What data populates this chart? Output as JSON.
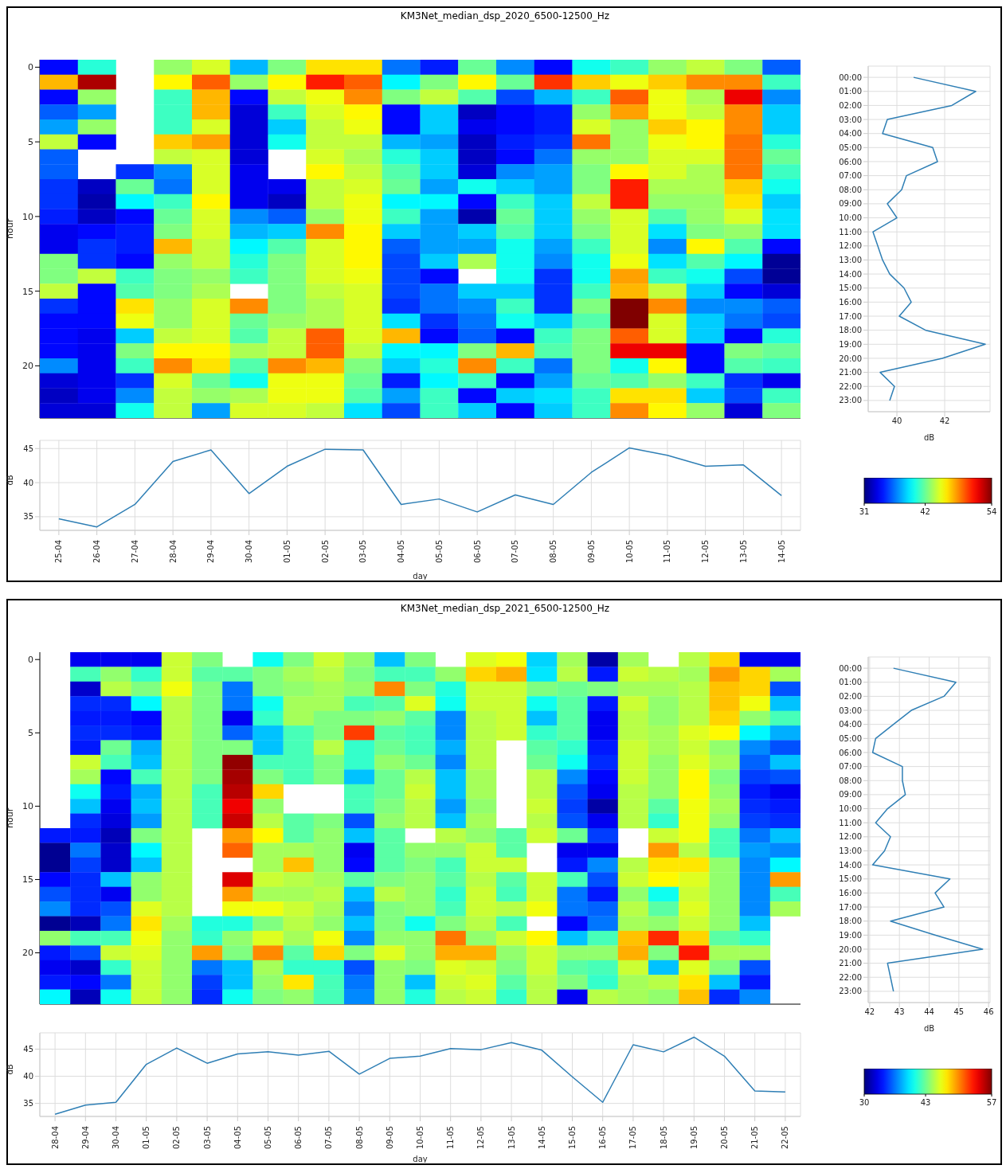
{
  "chart_data": [
    {
      "type": "heatmap",
      "title": "KM3Net_median_dsp_2020_6500-12500_Hz",
      "ylabel": "hour",
      "tick_labels": "y",
      "clim": [
        31,
        54
      ],
      "cticks": [
        31,
        42,
        54
      ],
      "categories": [
        null,
        null,
        null,
        null,
        null,
        null,
        null,
        null,
        null,
        null,
        null,
        null,
        null,
        null,
        null,
        null,
        null,
        null,
        null,
        null
      ],
      "y_categories": [
        "0",
        null,
        null,
        null,
        null,
        "5",
        null,
        null,
        null,
        null,
        "10",
        null,
        null,
        null,
        null,
        "15",
        null,
        null,
        null,
        null,
        "20",
        null,
        null,
        null
      ],
      "cells": [
        [
          34,
          40.5,
          null,
          43,
          44.5,
          38,
          42.5,
          46,
          46,
          36.5,
          34.5,
          42,
          37,
          34,
          40,
          41,
          43,
          44,
          42.5,
          36
        ],
        [
          47,
          53,
          null,
          45.5,
          49,
          43,
          45.5,
          50.5,
          49,
          39.5,
          42.5,
          45.5,
          42,
          50,
          46.5,
          45,
          46.5,
          48,
          48,
          41
        ],
        [
          34,
          43,
          null,
          41,
          47,
          34,
          44,
          45,
          48,
          42.5,
          44,
          41.5,
          35.5,
          38,
          41,
          49,
          45,
          43.5,
          51.5,
          37
        ],
        [
          36,
          37.5,
          null,
          41,
          47,
          33,
          41,
          44.5,
          45.5,
          34,
          38.5,
          32.5,
          34,
          34.5,
          43,
          47.5,
          45,
          44,
          48,
          38.5
        ],
        [
          37.5,
          43,
          null,
          41,
          44.5,
          33,
          38.5,
          44,
          45,
          34,
          38.5,
          33.5,
          34,
          34.5,
          44.5,
          43,
          46.5,
          45.5,
          48,
          38.5
        ],
        [
          44,
          34,
          null,
          46.5,
          47.5,
          33,
          40,
          44,
          44,
          38,
          37.5,
          32.5,
          34.5,
          35,
          48.5,
          43,
          45,
          45.5,
          48.5,
          40.5
        ],
        [
          36,
          null,
          null,
          44,
          44.5,
          33,
          null,
          44.5,
          43.5,
          40.5,
          38.5,
          32.5,
          34,
          36.5,
          43,
          43,
          44.5,
          44.5,
          48.5,
          42
        ],
        [
          36,
          null,
          35,
          37,
          44.5,
          33.5,
          null,
          45.5,
          44,
          41.5,
          38.5,
          33,
          37,
          37.5,
          42.5,
          45.5,
          44.5,
          43.5,
          48.5,
          41
        ],
        [
          35,
          32.5,
          42,
          36.5,
          44.5,
          33.5,
          33.5,
          44,
          44.5,
          42,
          37.5,
          40,
          38.5,
          37.5,
          42.5,
          50.5,
          43.5,
          43.5,
          46.5,
          40
        ],
        [
          35,
          32,
          39.5,
          41,
          45.5,
          33.5,
          32.5,
          44,
          45,
          39.5,
          39.5,
          34,
          41,
          38.5,
          44,
          50.5,
          43,
          43,
          46,
          38.5
        ],
        [
          34.5,
          32.5,
          34,
          42,
          44.5,
          37,
          36,
          43,
          45,
          41,
          37.5,
          32,
          42,
          38.5,
          43,
          44.5,
          41.5,
          43,
          44.5,
          39
        ],
        [
          33.5,
          34,
          34.5,
          42.5,
          44.5,
          38,
          38.5,
          48,
          45.5,
          38.5,
          37.5,
          38.5,
          41.5,
          38.5,
          42.5,
          44.5,
          39,
          42.5,
          43,
          39
        ],
        [
          33.5,
          35,
          34.5,
          47,
          44,
          39.5,
          41.5,
          44.5,
          45.5,
          36,
          37.5,
          37.5,
          40,
          37.5,
          41,
          44.5,
          37,
          45.5,
          41.5,
          34
        ],
        [
          42.5,
          35,
          34,
          43,
          44,
          40.5,
          42.5,
          44.5,
          45.5,
          35.5,
          38.5,
          43.5,
          40,
          37,
          40,
          45,
          39,
          41.5,
          39.5,
          31.5
        ],
        [
          42.5,
          44,
          41,
          42.5,
          43,
          41,
          42.5,
          44.5,
          45,
          35.5,
          34,
          null,
          40,
          35,
          40,
          47.5,
          41,
          40,
          35.5,
          31.5
        ],
        [
          44,
          34,
          41.5,
          42.5,
          43.5,
          null,
          42.5,
          44,
          44.5,
          35.5,
          36.5,
          38.5,
          38.5,
          35,
          41,
          47,
          44,
          38.5,
          34,
          33
        ],
        [
          35,
          34,
          46,
          43,
          44.5,
          48,
          42.5,
          43.5,
          44.5,
          35,
          36.5,
          37,
          41,
          35,
          42.5,
          54,
          48,
          37,
          37,
          36
        ],
        [
          34,
          34,
          45,
          43,
          44.5,
          42,
          43,
          43.5,
          44.5,
          39,
          35,
          36.5,
          40,
          38.5,
          41.5,
          54,
          44.5,
          38.5,
          36.5,
          35.5
        ],
        [
          34,
          33.5,
          38.5,
          44,
          44.5,
          41.5,
          44,
          49,
          44.5,
          47,
          34,
          36,
          34,
          41,
          42.5,
          49,
          44.5,
          38.5,
          34,
          40.5
        ],
        [
          34,
          33.5,
          42.5,
          45.5,
          45.5,
          43.5,
          44,
          49,
          44,
          39.5,
          39.5,
          42.5,
          47,
          41.5,
          42.5,
          51.5,
          51.5,
          34,
          42.5,
          42
        ],
        [
          37,
          33.5,
          41,
          48,
          46,
          41.5,
          48,
          47,
          42.5,
          38.5,
          40.5,
          48,
          41,
          36.5,
          42.5,
          40,
          45.5,
          34,
          41.5,
          41
        ],
        [
          33,
          33.5,
          35,
          44.5,
          42,
          40,
          45,
          45,
          42,
          34.5,
          39.5,
          41,
          34,
          37.5,
          42,
          41.5,
          43,
          41,
          35,
          33.5
        ],
        [
          32.5,
          33.5,
          37,
          44,
          43,
          43.5,
          45,
          45,
          41.5,
          37.5,
          41,
          34,
          38.5,
          39,
          41,
          46,
          46,
          38.5,
          35.5,
          41
        ],
        [
          33,
          33,
          40,
          44,
          37.5,
          44.5,
          44.5,
          44,
          39,
          35.5,
          41,
          38.5,
          34,
          38.5,
          41,
          48,
          45.5,
          43,
          33,
          42.5
        ]
      ]
    },
    {
      "type": "line",
      "orientation": "horizontal",
      "xlabel": "dB",
      "grid": true,
      "color": "#2f7fb5",
      "xlim": [
        38.8,
        43.9
      ],
      "xticks": [
        40,
        42
      ],
      "categories": [
        "00:00",
        "01:00",
        "02:00",
        "03:00",
        "04:00",
        "05:00",
        "06:00",
        "07:00",
        "08:00",
        "09:00",
        "10:00",
        "11:00",
        "12:00",
        "13:00",
        "14:00",
        "15:00",
        "16:00",
        "17:00",
        "18:00",
        "19:00",
        "20:00",
        "21:00",
        "22:00",
        "23:00"
      ],
      "values": [
        40.7,
        43.3,
        42.3,
        39.6,
        39.4,
        41.5,
        41.7,
        40.4,
        40.2,
        39.6,
        40.0,
        39.0,
        39.2,
        39.4,
        39.7,
        40.3,
        40.6,
        40.1,
        41.2,
        43.7,
        41.9,
        39.3,
        39.9,
        39.7
      ]
    },
    {
      "type": "line",
      "xlabel": "day",
      "ylabel": "dB",
      "grid": true,
      "color": "#2f7fb5",
      "ylim": [
        33,
        46.2
      ],
      "yticks": [
        35,
        40,
        45
      ],
      "categories": [
        "25-04",
        "26-04",
        "27-04",
        "28-04",
        "29-04",
        "30-04",
        "01-05",
        "02-05",
        "03-05",
        "04-05",
        "05-05",
        "06-05",
        "07-05",
        "08-05",
        "09-05",
        "10-05",
        "11-05",
        "12-05",
        "13-05",
        "14-05"
      ],
      "values": [
        34.7,
        33.5,
        36.8,
        43.1,
        44.8,
        38.4,
        42.4,
        44.9,
        44.8,
        36.8,
        37.6,
        35.7,
        38.2,
        36.8,
        41.5,
        45.1,
        44.0,
        42.4,
        42.6,
        38.1
      ]
    },
    {
      "type": "heatmap",
      "title": "KM3Net_median_dsp_2021_6500-12500_Hz",
      "ylabel": "hour",
      "tick_labels": "y",
      "clim": [
        30,
        57
      ],
      "cticks": [
        30,
        43,
        57
      ],
      "categories": [
        null,
        null,
        null,
        null,
        null,
        null,
        null,
        null,
        null,
        null,
        null,
        null,
        null,
        null,
        null,
        null,
        null,
        null,
        null,
        null,
        null,
        null,
        null,
        null,
        null
      ],
      "y_categories": [
        "0",
        null,
        null,
        null,
        null,
        "5",
        null,
        null,
        null,
        null,
        "10",
        null,
        null,
        null,
        null,
        "15",
        null,
        null,
        null,
        null,
        "20",
        null,
        null,
        null
      ],
      "cells": [
        [
          null,
          33,
          33,
          33,
          45.5,
          43.5,
          null,
          40.5,
          43.5,
          45.5,
          44,
          38.5,
          43.5,
          null,
          46,
          46.5,
          39,
          44.5,
          31,
          44.5,
          null,
          45,
          48,
          33,
          33
        ],
        [
          null,
          42,
          44,
          41.5,
          45.5,
          42.5,
          42.5,
          43.5,
          44.5,
          45,
          43.5,
          42,
          42,
          44,
          48,
          49,
          39.5,
          45,
          34,
          45.5,
          45,
          44.5,
          49.5,
          48,
          44.5
        ],
        [
          null,
          32,
          45,
          43.5,
          46.5,
          43.5,
          36.5,
          43.5,
          44,
          44.5,
          44,
          50,
          43.5,
          41,
          45.5,
          45.5,
          43.5,
          43,
          43.5,
          44.5,
          44.5,
          45,
          48.5,
          48,
          35.5
        ],
        [
          null,
          34.5,
          34.5,
          40,
          45,
          43.5,
          36.5,
          40.5,
          44.5,
          44.5,
          42,
          42.5,
          46,
          40.5,
          45.5,
          45.5,
          40.5,
          42.5,
          34,
          45.5,
          44,
          45,
          48.5,
          46.5,
          38.5
        ],
        [
          null,
          34,
          34,
          33.5,
          45,
          43.5,
          33,
          41.5,
          44.5,
          43.5,
          43.5,
          44,
          42.5,
          37,
          45,
          45.5,
          38.5,
          42.5,
          33,
          45,
          44,
          45,
          48,
          44,
          42
        ],
        [
          null,
          34.5,
          34.5,
          34,
          45,
          43.5,
          36,
          38.5,
          42,
          43.5,
          52,
          42.5,
          42,
          37,
          45,
          45.5,
          41.5,
          42.5,
          33,
          45,
          44.5,
          46,
          47,
          40,
          38
        ],
        [
          null,
          34,
          43,
          38,
          45,
          43.5,
          43.5,
          38.5,
          42,
          45,
          41.5,
          43,
          42,
          38,
          45,
          null,
          42.5,
          41.5,
          34,
          45.5,
          44.5,
          45.5,
          44,
          37,
          35.5
        ],
        [
          null,
          45.5,
          42,
          38.5,
          45,
          43.5,
          56.5,
          42,
          42,
          43.5,
          41.5,
          44,
          43,
          37,
          45,
          null,
          43,
          40.5,
          34.5,
          45.5,
          44,
          46,
          44.5,
          36,
          38.5
        ],
        [
          null,
          44.5,
          33.5,
          42,
          45,
          43.5,
          56,
          43.5,
          42,
          43.5,
          38.5,
          43,
          45,
          38.5,
          44.5,
          null,
          45,
          37,
          33.5,
          45.5,
          44,
          47,
          43.5,
          35,
          35.5
        ],
        [
          null,
          40.5,
          34,
          38,
          45,
          42,
          55.5,
          48,
          null,
          null,
          42,
          43,
          45.5,
          38.5,
          44.5,
          null,
          45,
          35.5,
          33,
          45,
          44,
          47,
          44,
          34,
          33
        ],
        [
          null,
          38.5,
          33,
          38.5,
          45,
          42,
          54,
          44,
          null,
          null,
          42,
          43.5,
          45,
          37.5,
          44,
          null,
          45.5,
          35,
          31,
          45,
          42.5,
          46.5,
          44.5,
          34.5,
          34
        ],
        [
          null,
          34.5,
          32.5,
          37.5,
          45,
          42,
          55,
          45,
          42.5,
          43.5,
          35.5,
          44,
          45,
          38.5,
          44.5,
          null,
          45,
          35.5,
          33,
          45,
          41.5,
          46.5,
          44,
          35,
          34.5
        ],
        [
          34,
          34,
          31.5,
          43.5,
          45,
          null,
          49.5,
          47,
          42.5,
          44,
          38.5,
          42.5,
          null,
          45,
          44,
          42.5,
          45.5,
          43,
          35,
          null,
          45.5,
          46.5,
          42,
          36.5,
          38.5
        ],
        [
          30.5,
          36.5,
          32,
          40,
          45,
          null,
          51,
          44.5,
          44.5,
          44,
          33,
          42.5,
          44,
          44,
          45.5,
          42.5,
          null,
          33,
          33,
          null,
          49.5,
          45,
          42,
          37.5,
          37
        ],
        [
          30.5,
          35,
          32,
          38.5,
          45,
          null,
          null,
          44.5,
          48.5,
          44,
          33.5,
          42.5,
          43.5,
          42,
          45.5,
          45.5,
          null,
          34,
          37,
          45,
          47.5,
          47.5,
          44,
          37,
          40
        ],
        [
          33.5,
          34.5,
          38.5,
          44,
          45,
          null,
          54.5,
          45.5,
          45,
          44.5,
          42.5,
          43.5,
          44,
          42.5,
          45,
          42.5,
          45.5,
          42,
          35.5,
          45.5,
          47,
          46,
          44,
          37,
          49.5
        ],
        [
          35.5,
          34.5,
          33,
          44,
          45,
          null,
          49.5,
          44.5,
          44.5,
          45,
          38.5,
          45,
          44,
          41.5,
          45.5,
          42,
          45.5,
          36.5,
          34,
          44,
          40.5,
          45.5,
          44,
          37,
          42
        ],
        [
          37,
          34.5,
          35.5,
          46,
          45,
          null,
          46.5,
          46.5,
          45.5,
          44.5,
          37,
          43.5,
          44,
          42,
          45.5,
          45,
          46.5,
          36.5,
          36,
          45,
          42.5,
          46,
          44,
          37,
          44.5
        ],
        [
          30.5,
          31.5,
          36.5,
          47.5,
          44.5,
          41,
          41,
          43.5,
          45,
          44,
          38.5,
          43.5,
          40.5,
          43.5,
          45,
          42,
          null,
          33.5,
          36.5,
          44.5,
          44,
          45.5,
          44,
          38.5,
          null
        ],
        [
          44,
          42,
          42,
          46.5,
          44,
          41.5,
          44,
          46,
          44.5,
          46.5,
          37,
          44,
          44,
          50.5,
          44,
          45.5,
          47,
          38.5,
          42,
          48.5,
          52.5,
          48,
          42.5,
          41.5,
          null
        ],
        [
          34,
          35.5,
          45.5,
          46,
          44,
          49.5,
          43.5,
          50,
          42.5,
          48,
          43.5,
          46,
          44,
          49,
          49,
          44,
          45.5,
          44,
          44,
          49,
          43.5,
          53,
          44.5,
          44.5,
          null
        ],
        [
          33,
          32,
          41.5,
          45.5,
          44,
          36.5,
          38.5,
          44.5,
          41.5,
          41.5,
          35.5,
          44,
          43.5,
          46,
          45.5,
          43.5,
          45.5,
          42.5,
          42,
          45.5,
          38.5,
          46,
          43.5,
          35.5,
          null
        ],
        [
          34,
          33.5,
          36.5,
          45.5,
          44,
          35,
          38.5,
          44,
          47.5,
          42,
          36.5,
          44,
          38.5,
          45.5,
          46,
          42.5,
          45,
          43.5,
          41.5,
          44.5,
          45,
          47.5,
          38.5,
          34,
          null
        ],
        [
          40,
          31.5,
          40.5,
          45.5,
          44,
          34.5,
          40.5,
          43.5,
          44,
          42,
          37,
          44,
          41,
          45,
          45.5,
          41.5,
          45,
          33,
          45,
          44.5,
          44,
          48.5,
          34.5,
          37,
          null
        ]
      ]
    },
    {
      "type": "line",
      "orientation": "horizontal",
      "xlabel": "dB",
      "grid": true,
      "color": "#2f7fb5",
      "xlim": [
        41.95,
        46.05
      ],
      "xticks": [
        42,
        43,
        44,
        45,
        46
      ],
      "categories": [
        "00:00",
        "01:00",
        "02:00",
        "03:00",
        "04:00",
        "05:00",
        "06:00",
        "07:00",
        "08:00",
        "09:00",
        "10:00",
        "11:00",
        "12:00",
        "13:00",
        "14:00",
        "15:00",
        "16:00",
        "17:00",
        "18:00",
        "19:00",
        "20:00",
        "21:00",
        "22:00",
        "23:00"
      ],
      "values": [
        42.8,
        44.9,
        44.5,
        43.4,
        42.8,
        42.2,
        42.1,
        43.1,
        43.1,
        43.2,
        42.6,
        42.2,
        42.7,
        42.5,
        42.1,
        44.7,
        44.2,
        44.5,
        42.7,
        44.2,
        45.8,
        42.6,
        42.7,
        42.8
      ]
    },
    {
      "type": "line",
      "xlabel": "day",
      "ylabel": "dB",
      "grid": true,
      "color": "#2f7fb5",
      "ylim": [
        32.6,
        48
      ],
      "yticks": [
        35,
        40,
        45
      ],
      "categories": [
        "28-04",
        "29-04",
        "30-04",
        "01-05",
        "02-05",
        "03-05",
        "04-05",
        "05-05",
        "06-05",
        "07-05",
        "08-05",
        "09-05",
        "10-05",
        "11-05",
        "12-05",
        "13-05",
        "14-05",
        "15-05",
        "16-05",
        "17-05",
        "18-05",
        "19-05",
        "20-05",
        "21-05",
        "22-05"
      ],
      "values": [
        33.0,
        34.7,
        35.2,
        42.2,
        45.2,
        42.4,
        44.1,
        44.5,
        43.9,
        44.6,
        40.4,
        43.3,
        43.7,
        45.1,
        44.9,
        46.2,
        44.8,
        39.9,
        35.2,
        45.8,
        44.5,
        47.2,
        43.7,
        37.3,
        37.1
      ]
    }
  ]
}
